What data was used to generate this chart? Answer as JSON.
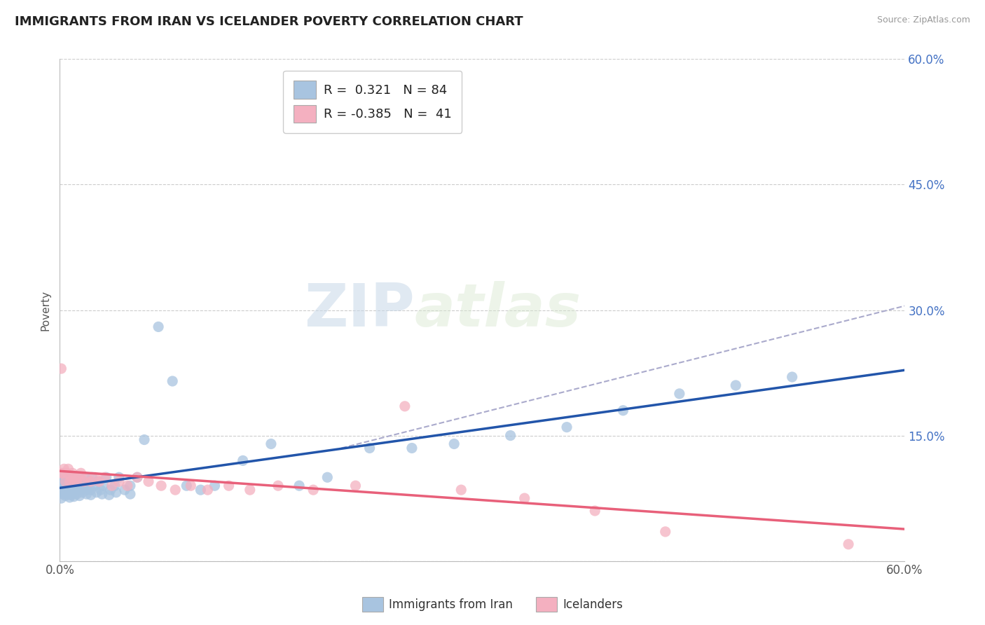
{
  "title": "IMMIGRANTS FROM IRAN VS ICELANDER POVERTY CORRELATION CHART",
  "source": "Source: ZipAtlas.com",
  "xlabel_iran": "Immigrants from Iran",
  "xlabel_icelanders": "Icelanders",
  "ylabel": "Poverty",
  "xmin": 0.0,
  "xmax": 0.6,
  "ymin": 0.0,
  "ymax": 0.6,
  "yticks": [
    0.0,
    0.15,
    0.3,
    0.45,
    0.6
  ],
  "ytick_labels_right": [
    "",
    "15.0%",
    "30.0%",
    "45.0%",
    "60.0%"
  ],
  "xtick_vals": [
    0.0,
    0.15,
    0.3,
    0.45,
    0.6
  ],
  "xtick_labels": [
    "0.0%",
    "",
    "",
    "",
    "60.0%"
  ],
  "iran_R": 0.321,
  "iran_N": 84,
  "icelander_R": -0.385,
  "icelander_N": 41,
  "iran_color": "#a8c4e0",
  "iran_line_color": "#2255aa",
  "icelander_color": "#f4b0c0",
  "icelander_line_color": "#e8607a",
  "dashed_line_color": "#aaaacc",
  "watermark_zip": "ZIP",
  "watermark_atlas": "atlas",
  "background": "#ffffff",
  "grid_color": "#cccccc",
  "iran_scatter_x": [
    0.001,
    0.002,
    0.002,
    0.003,
    0.003,
    0.003,
    0.004,
    0.004,
    0.005,
    0.005,
    0.006,
    0.006,
    0.007,
    0.007,
    0.008,
    0.008,
    0.009,
    0.009,
    0.01,
    0.01,
    0.011,
    0.011,
    0.012,
    0.013,
    0.014,
    0.015,
    0.016,
    0.017,
    0.018,
    0.019,
    0.02,
    0.021,
    0.022,
    0.023,
    0.025,
    0.027,
    0.029,
    0.031,
    0.033,
    0.036,
    0.039,
    0.042,
    0.046,
    0.05,
    0.055,
    0.06,
    0.07,
    0.08,
    0.09,
    0.1,
    0.11,
    0.13,
    0.15,
    0.17,
    0.19,
    0.22,
    0.25,
    0.28,
    0.32,
    0.36,
    0.4,
    0.44,
    0.48,
    0.52,
    0.001,
    0.002,
    0.003,
    0.004,
    0.005,
    0.006,
    0.007,
    0.008,
    0.009,
    0.01,
    0.012,
    0.014,
    0.016,
    0.019,
    0.022,
    0.026,
    0.03,
    0.035,
    0.04,
    0.05
  ],
  "iran_scatter_y": [
    0.09,
    0.1,
    0.085,
    0.095,
    0.09,
    0.1,
    0.085,
    0.095,
    0.09,
    0.1,
    0.085,
    0.095,
    0.09,
    0.1,
    0.085,
    0.1,
    0.09,
    0.095,
    0.085,
    0.1,
    0.09,
    0.095,
    0.085,
    0.09,
    0.1,
    0.085,
    0.095,
    0.09,
    0.1,
    0.085,
    0.09,
    0.095,
    0.085,
    0.1,
    0.09,
    0.095,
    0.085,
    0.09,
    0.1,
    0.085,
    0.09,
    0.1,
    0.085,
    0.09,
    0.1,
    0.145,
    0.28,
    0.215,
    0.09,
    0.085,
    0.09,
    0.12,
    0.14,
    0.09,
    0.1,
    0.135,
    0.135,
    0.14,
    0.15,
    0.16,
    0.18,
    0.2,
    0.21,
    0.22,
    0.075,
    0.08,
    0.082,
    0.078,
    0.08,
    0.082,
    0.076,
    0.079,
    0.081,
    0.077,
    0.08,
    0.078,
    0.082,
    0.08,
    0.079,
    0.082,
    0.08,
    0.079,
    0.082,
    0.08
  ],
  "icelander_scatter_x": [
    0.001,
    0.002,
    0.003,
    0.004,
    0.005,
    0.006,
    0.007,
    0.008,
    0.009,
    0.01,
    0.011,
    0.012,
    0.013,
    0.015,
    0.017,
    0.019,
    0.022,
    0.025,
    0.028,
    0.032,
    0.037,
    0.042,
    0.048,
    0.055,
    0.063,
    0.072,
    0.082,
    0.093,
    0.105,
    0.12,
    0.135,
    0.155,
    0.18,
    0.21,
    0.245,
    0.285,
    0.33,
    0.38,
    0.43,
    0.56,
    0.001
  ],
  "icelander_scatter_y": [
    0.105,
    0.105,
    0.11,
    0.095,
    0.105,
    0.11,
    0.095,
    0.1,
    0.105,
    0.095,
    0.1,
    0.095,
    0.1,
    0.105,
    0.095,
    0.1,
    0.095,
    0.1,
    0.095,
    0.1,
    0.09,
    0.095,
    0.09,
    0.1,
    0.095,
    0.09,
    0.085,
    0.09,
    0.085,
    0.09,
    0.085,
    0.09,
    0.085,
    0.09,
    0.185,
    0.085,
    0.075,
    0.06,
    0.035,
    0.02,
    0.23
  ]
}
